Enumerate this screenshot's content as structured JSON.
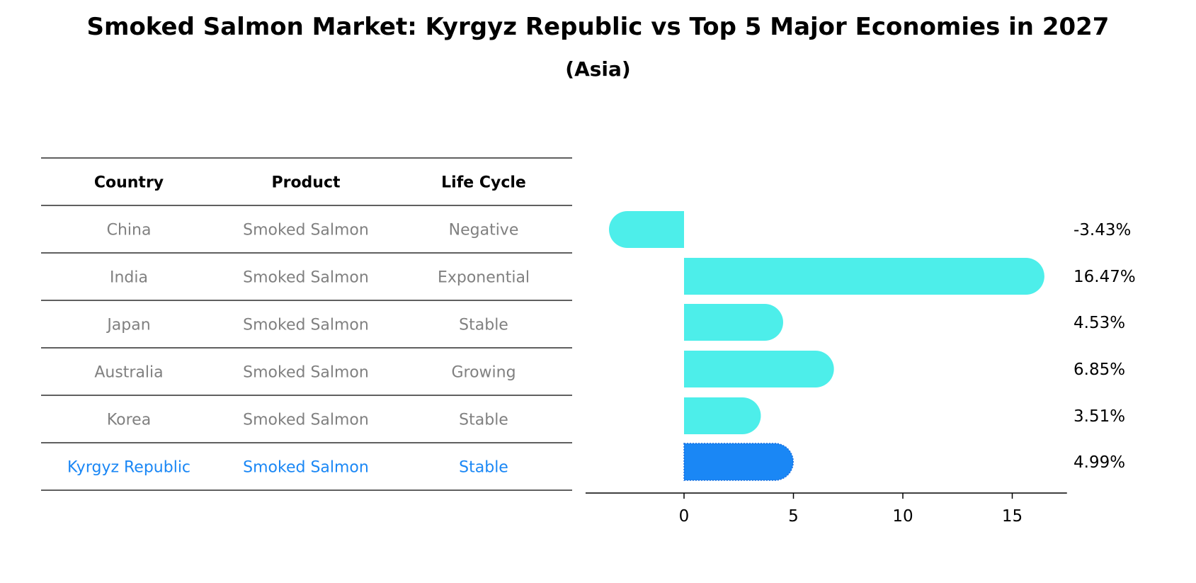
{
  "title": "Smoked Salmon Market: Kyrgyz Republic vs Top 5 Major Economies in 2027",
  "subtitle": "(Asia)",
  "colors": {
    "bar": "#4DEEEA",
    "highlight": "#1A87F5",
    "text_muted": "#808080",
    "rule": "#000000"
  },
  "table": {
    "headers": [
      "Country",
      "Product",
      "Life Cycle"
    ],
    "rows": [
      {
        "country": "China",
        "product": "Smoked Salmon",
        "life_cycle": "Negative",
        "highlight": false
      },
      {
        "country": "India",
        "product": "Smoked Salmon",
        "life_cycle": "Exponential",
        "highlight": false
      },
      {
        "country": "Japan",
        "product": "Smoked Salmon",
        "life_cycle": "Stable",
        "highlight": false
      },
      {
        "country": "Australia",
        "product": "Smoked Salmon",
        "life_cycle": "Growing",
        "highlight": false
      },
      {
        "country": "Korea",
        "product": "Smoked Salmon",
        "life_cycle": "Stable",
        "highlight": false
      },
      {
        "country": "Kyrgyz Republic",
        "product": "Smoked Salmon",
        "life_cycle": "Stable",
        "highlight": true
      }
    ]
  },
  "chart_data": {
    "type": "bar",
    "orientation": "horizontal",
    "categories": [
      "China",
      "India",
      "Japan",
      "Australia",
      "Korea",
      "Kyrgyz Republic"
    ],
    "values": [
      -3.43,
      16.47,
      4.53,
      6.85,
      3.51,
      4.99
    ],
    "value_labels": [
      "-3.43%",
      "16.47%",
      "4.53%",
      "6.85%",
      "3.51%",
      "4.99%"
    ],
    "highlight_index": 5,
    "xlim": [
      -4.5,
      17.5
    ],
    "xticks": [
      0,
      5,
      10,
      15
    ],
    "xtick_labels": [
      "0",
      "5",
      "10",
      "15"
    ],
    "title": "",
    "xlabel": "",
    "ylabel": "",
    "grid": false,
    "legend": "none"
  }
}
